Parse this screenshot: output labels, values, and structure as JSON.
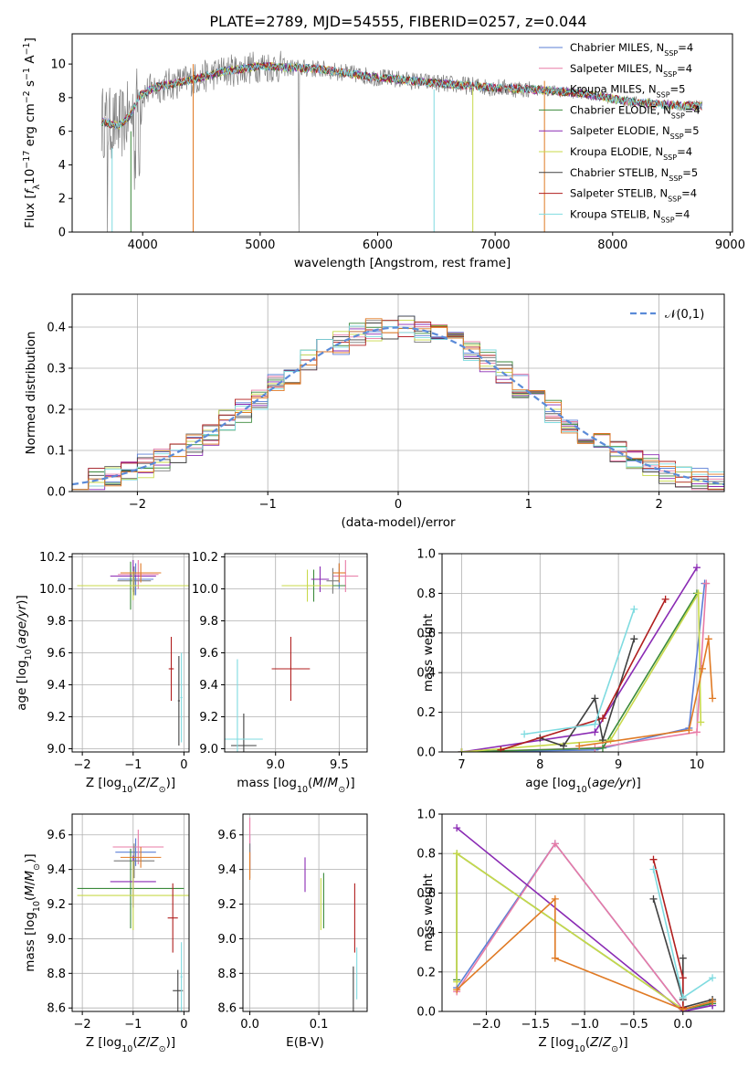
{
  "figure_title": "PLATE=2789, MJD=54555, FIBERID=0257, z=0.044",
  "colors": {
    "Chabrier MILES": "#5b7fd6",
    "Salpeter MILES": "#e87ba6",
    "Kroupa MILES": "#7a7a7a",
    "Chabrier ELODIE": "#3b8a3b",
    "Salpeter ELODIE": "#8a2bb4",
    "Kroupa ELODIE": "#c8d94a",
    "Chabrier STELIB": "#404040",
    "Salpeter STELIB": "#b01e1e",
    "Kroupa STELIB": "#7fdbe0",
    "orange": "#e07a24",
    "data": "#808080",
    "normal": "#5b8bd8"
  },
  "chart_data": [
    {
      "id": "spectrum",
      "type": "line",
      "title": "PLATE=2789, MJD=54555, FIBERID=0257, z=0.044",
      "xlabel": "wavelength [Angstrom, rest frame]",
      "ylabel": "Flux [f_λ10^-17 erg cm^-2 s^-1 A^-1]",
      "xlim": [
        3400,
        9020
      ],
      "ylim": [
        0,
        11.8
      ],
      "xticks": [
        4000,
        5000,
        6000,
        7000,
        8000,
        9000
      ],
      "yticks": [
        0,
        2,
        4,
        6,
        8,
        10
      ],
      "grid": false,
      "legend_position": "upper right",
      "legend": [
        {
          "label": "Chabrier MILES",
          "nssp": "4"
        },
        {
          "label": "Salpeter MILES",
          "nssp": "4"
        },
        {
          "label": "Kroupa MILES",
          "nssp": "5"
        },
        {
          "label": "Chabrier ELODIE",
          "nssp": "4"
        },
        {
          "label": "Salpeter ELODIE",
          "nssp": "5"
        },
        {
          "label": "Kroupa ELODIE",
          "nssp": "4"
        },
        {
          "label": "Chabrier STELIB",
          "nssp": "5"
        },
        {
          "label": "Salpeter STELIB",
          "nssp": "4"
        },
        {
          "label": "Kroupa STELIB",
          "nssp": "4"
        }
      ],
      "continuum_points": [
        [
          3650,
          6.6
        ],
        [
          3800,
          6.3
        ],
        [
          3900,
          7.0
        ],
        [
          3970,
          8.1
        ],
        [
          4100,
          8.6
        ],
        [
          4300,
          8.9
        ],
        [
          4500,
          9.2
        ],
        [
          4700,
          9.6
        ],
        [
          4860,
          9.7
        ],
        [
          5000,
          9.9
        ],
        [
          5200,
          9.8
        ],
        [
          5500,
          9.7
        ],
        [
          5800,
          9.4
        ],
        [
          6000,
          9.2
        ],
        [
          6300,
          9.0
        ],
        [
          6600,
          8.8
        ],
        [
          7000,
          8.6
        ],
        [
          7300,
          8.5
        ],
        [
          7500,
          8.4
        ],
        [
          7800,
          8.2
        ],
        [
          8100,
          7.8
        ],
        [
          8400,
          7.6
        ],
        [
          8700,
          7.5
        ]
      ]
    },
    {
      "id": "residuals",
      "type": "histogram",
      "xlabel": "(data-model)/error",
      "ylabel": "Normed distribution",
      "xlim": [
        -2.5,
        2.5
      ],
      "ylim": [
        0,
        0.48
      ],
      "xticks": [
        -2,
        -1,
        0,
        1,
        2
      ],
      "yticks": [
        0.0,
        0.1,
        0.2,
        0.3,
        0.4
      ],
      "grid": true,
      "legend_position": "upper right",
      "normal_label": "𝒩(0,1)",
      "bins": 40
    },
    {
      "id": "age_vs_Z",
      "type": "errorbar",
      "xlabel": "Z [log10(Z/Z☉)]",
      "ylabel": "age  [log10(age/yr)]",
      "xlim": [
        -2.2,
        0.1
      ],
      "ylim": [
        8.98,
        10.22
      ],
      "xticks": [
        -2,
        -1,
        0
      ],
      "yticks": [
        9.0,
        9.2,
        9.4,
        9.6,
        9.8,
        10.0,
        10.2
      ],
      "grid": true,
      "points": [
        {
          "model": "Chabrier MILES",
          "x": -0.95,
          "y": 10.06,
          "ex": 0.35,
          "ey": 0.1
        },
        {
          "model": "Salpeter MILES",
          "x": -0.9,
          "y": 10.09,
          "ex": 0.4,
          "ey": 0.09
        },
        {
          "model": "Kroupa MILES",
          "x": -0.98,
          "y": 10.05,
          "ex": 0.33,
          "ey": 0.09
        },
        {
          "model": "Chabrier ELODIE",
          "x": -1.05,
          "y": 10.02,
          "ex": 1.05,
          "ey": 0.15
        },
        {
          "model": "Salpeter ELODIE",
          "x": -1.0,
          "y": 10.08,
          "ex": 0.45,
          "ey": 0.1
        },
        {
          "model": "Kroupa ELODIE",
          "x": -1.0,
          "y": 10.02,
          "ex": 1.1,
          "ey": 0.09
        },
        {
          "model": "Chabrier STELIB",
          "x": -0.1,
          "y": 9.3,
          "ex": 0.02,
          "ey": 0.28
        },
        {
          "model": "Salpeter STELIB",
          "x": -0.25,
          "y": 9.5,
          "ex": 0.05,
          "ey": 0.2
        },
        {
          "model": "Kroupa STELIB",
          "x": -0.05,
          "y": 9.32,
          "ex": 0.02,
          "ey": 0.28
        },
        {
          "model": "orange",
          "x": -0.85,
          "y": 10.1,
          "ex": 0.4,
          "ey": 0.06
        }
      ]
    },
    {
      "id": "age_vs_mass",
      "type": "errorbar",
      "xlabel": "mass [log10(M/M☉)]",
      "xlim": [
        8.6,
        9.72
      ],
      "ylim": [
        8.98,
        10.22
      ],
      "xticks": [
        9.0,
        9.5
      ],
      "yticks": [
        9.0,
        9.2,
        9.4,
        9.6,
        9.8,
        10.0,
        10.2
      ],
      "grid": true,
      "points": [
        {
          "model": "Chabrier MILES",
          "x": 9.5,
          "y": 10.08,
          "ex": 0.05,
          "ey": 0.08
        },
        {
          "model": "Salpeter MILES",
          "x": 9.55,
          "y": 10.08,
          "ex": 0.1,
          "ey": 0.1
        },
        {
          "model": "Kroupa MILES",
          "x": 9.45,
          "y": 10.05,
          "ex": 0.05,
          "ey": 0.08
        },
        {
          "model": "Chabrier ELODIE",
          "x": 9.3,
          "y": 10.02,
          "ex": 0.25,
          "ey": 0.1
        },
        {
          "model": "Salpeter ELODIE",
          "x": 9.35,
          "y": 10.06,
          "ex": 0.07,
          "ey": 0.08
        },
        {
          "model": "Kroupa ELODIE",
          "x": 9.25,
          "y": 10.02,
          "ex": 0.2,
          "ey": 0.1
        },
        {
          "model": "Chabrier STELIB",
          "x": 8.75,
          "y": 9.02,
          "ex": 0.1,
          "ey": 0.2
        },
        {
          "model": "Salpeter STELIB",
          "x": 9.12,
          "y": 9.5,
          "ex": 0.15,
          "ey": 0.2
        },
        {
          "model": "Kroupa STELIB",
          "x": 8.7,
          "y": 9.06,
          "ex": 0.2,
          "ey": 0.5
        },
        {
          "model": "orange",
          "x": 9.5,
          "y": 10.1,
          "ex": 0.05,
          "ey": 0.06
        }
      ]
    },
    {
      "id": "weight_vs_age",
      "type": "line",
      "xlabel": "age  [log10(age/yr)]",
      "ylabel": "mass weight",
      "xlim": [
        6.75,
        10.35
      ],
      "ylim": [
        0,
        1.0
      ],
      "xticks": [
        7,
        8,
        9,
        10
      ],
      "yticks": [
        0.0,
        0.2,
        0.4,
        0.6,
        0.8,
        1.0
      ],
      "grid": true,
      "series": [
        {
          "model": "Chabrier MILES",
          "points": [
            [
              7.0,
              0.0
            ],
            [
              8.7,
              0.01
            ],
            [
              9.9,
              0.12
            ],
            [
              10.1,
              0.85
            ]
          ]
        },
        {
          "model": "Salpeter MILES",
          "points": [
            [
              7.0,
              0.0
            ],
            [
              8.7,
              0.02
            ],
            [
              10.0,
              0.1
            ],
            [
              10.12,
              0.85
            ]
          ]
        },
        {
          "model": "Chabrier ELODIE",
          "points": [
            [
              7.0,
              0.0
            ],
            [
              8.8,
              0.02
            ],
            [
              10.0,
              0.8
            ]
          ]
        },
        {
          "model": "Salpeter ELODIE",
          "points": [
            [
              7.0,
              0.0
            ],
            [
              8.7,
              0.1
            ],
            [
              10.0,
              0.93
            ]
          ]
        },
        {
          "model": "Kroupa ELODIE",
          "points": [
            [
              7.0,
              0.0
            ],
            [
              8.9,
              0.06
            ],
            [
              10.02,
              0.8
            ],
            [
              10.05,
              0.15
            ]
          ]
        },
        {
          "model": "Chabrier STELIB",
          "points": [
            [
              8.0,
              0.07
            ],
            [
              8.3,
              0.03
            ],
            [
              8.7,
              0.27
            ],
            [
              8.8,
              0.06
            ],
            [
              9.2,
              0.57
            ]
          ]
        },
        {
          "model": "Salpeter STELIB",
          "points": [
            [
              7.5,
              0.01
            ],
            [
              8.8,
              0.17
            ],
            [
              9.6,
              0.77
            ]
          ]
        },
        {
          "model": "Kroupa STELIB",
          "points": [
            [
              7.8,
              0.09
            ],
            [
              8.7,
              0.14
            ],
            [
              9.2,
              0.72
            ]
          ]
        },
        {
          "model": "orange",
          "points": [
            [
              8.5,
              0.03
            ],
            [
              9.9,
              0.11
            ],
            [
              10.07,
              0.42
            ],
            [
              10.15,
              0.57
            ],
            [
              10.2,
              0.27
            ]
          ]
        }
      ]
    },
    {
      "id": "mass_vs_Z",
      "type": "errorbar",
      "xlabel": "Z [log10(Z/Z☉)]",
      "ylabel": "mass [log10(M/M☉)]",
      "xlim": [
        -2.2,
        0.1
      ],
      "ylim": [
        8.58,
        9.72
      ],
      "xticks": [
        -2,
        -1,
        0
      ],
      "yticks": [
        8.6,
        8.8,
        9.0,
        9.2,
        9.4,
        9.6
      ],
      "grid": true,
      "points": [
        {
          "model": "Chabrier MILES",
          "x": -0.95,
          "y": 9.5,
          "ex": 0.4,
          "ey": 0.08
        },
        {
          "model": "Salpeter MILES",
          "x": -0.9,
          "y": 9.53,
          "ex": 0.5,
          "ey": 0.1
        },
        {
          "model": "Kroupa MILES",
          "x": -0.98,
          "y": 9.45,
          "ex": 0.4,
          "ey": 0.1
        },
        {
          "model": "Chabrier ELODIE",
          "x": -1.05,
          "y": 9.29,
          "ex": 1.05,
          "ey": 0.23
        },
        {
          "model": "Salpeter ELODIE",
          "x": -1.0,
          "y": 9.33,
          "ex": 0.45,
          "ey": 0.15
        },
        {
          "model": "Kroupa ELODIE",
          "x": -1.0,
          "y": 9.25,
          "ex": 1.1,
          "ey": 0.2
        },
        {
          "model": "Chabrier STELIB",
          "x": -0.12,
          "y": 8.7,
          "ex": 0.1,
          "ey": 0.12
        },
        {
          "model": "Salpeter STELIB",
          "x": -0.22,
          "y": 9.12,
          "ex": 0.1,
          "ey": 0.2
        },
        {
          "model": "Kroupa STELIB",
          "x": -0.05,
          "y": 8.78,
          "ex": 0.02,
          "ey": 0.2
        },
        {
          "model": "orange",
          "x": -0.85,
          "y": 9.47,
          "ex": 0.4,
          "ey": 0.06
        }
      ]
    },
    {
      "id": "mass_vs_EBV",
      "type": "errorbar",
      "xlabel": "E(B-V)",
      "xlim": [
        -0.01,
        0.17
      ],
      "ylim": [
        8.58,
        9.72
      ],
      "xticks": [
        0.0,
        0.1
      ],
      "yticks": [
        8.6,
        8.8,
        9.0,
        9.2,
        9.4,
        9.6
      ],
      "grid": true,
      "points": [
        {
          "model": "Chabrier MILES",
          "x": 0.0,
          "y": 9.5,
          "ex": 0,
          "ey": 0.1
        },
        {
          "model": "Salpeter MILES",
          "x": 0.0,
          "y": 9.55,
          "ex": 0,
          "ey": 0.15
        },
        {
          "model": "Kroupa MILES",
          "x": 0.0,
          "y": 9.45,
          "ex": 0,
          "ey": 0.1
        },
        {
          "model": "Chabrier ELODIE",
          "x": 0.107,
          "y": 9.22,
          "ex": 0,
          "ey": 0.16
        },
        {
          "model": "Salpeter ELODIE",
          "x": 0.08,
          "y": 9.37,
          "ex": 0,
          "ey": 0.1
        },
        {
          "model": "Kroupa ELODIE",
          "x": 0.103,
          "y": 9.2,
          "ex": 0,
          "ey": 0.15
        },
        {
          "model": "Chabrier STELIB",
          "x": 0.15,
          "y": 8.68,
          "ex": 0,
          "ey": 0.16
        },
        {
          "model": "Salpeter STELIB",
          "x": 0.152,
          "y": 9.12,
          "ex": 0,
          "ey": 0.2
        },
        {
          "model": "Kroupa STELIB",
          "x": 0.155,
          "y": 8.8,
          "ex": 0,
          "ey": 0.15
        },
        {
          "model": "orange",
          "x": 0.0,
          "y": 9.42,
          "ex": 0,
          "ey": 0.08
        }
      ]
    },
    {
      "id": "weight_vs_Z",
      "type": "line",
      "xlabel": "Z [log10(Z/Z☉)]",
      "ylabel": "mass weight",
      "xlim": [
        -2.45,
        0.42
      ],
      "ylim": [
        0,
        1.0
      ],
      "xticks": [
        -2.0,
        -1.5,
        -1.0,
        -0.5,
        0.0
      ],
      "yticks": [
        0.0,
        0.2,
        0.4,
        0.6,
        0.8,
        1.0
      ],
      "grid": true,
      "series": [
        {
          "model": "Chabrier MILES",
          "points": [
            [
              -2.3,
              0.12
            ],
            [
              -1.3,
              0.85
            ],
            [
              0.0,
              0.01
            ],
            [
              0.3,
              0.03
            ]
          ]
        },
        {
          "model": "Salpeter MILES",
          "points": [
            [
              -2.3,
              0.1
            ],
            [
              -1.3,
              0.85
            ],
            [
              0.0,
              0.01
            ],
            [
              0.3,
              0.04
            ]
          ]
        },
        {
          "model": "Chabrier ELODIE",
          "points": [
            [
              -2.3,
              0.16
            ],
            [
              -2.3,
              0.8
            ],
            [
              0.0,
              0.01
            ],
            [
              0.3,
              0.04
            ]
          ]
        },
        {
          "model": "Salpeter ELODIE",
          "points": [
            [
              -2.3,
              0.93
            ],
            [
              0.0,
              0.0
            ],
            [
              0.3,
              0.03
            ]
          ]
        },
        {
          "model": "Kroupa ELODIE",
          "points": [
            [
              -2.3,
              0.15
            ],
            [
              -2.3,
              0.8
            ],
            [
              0.0,
              0.01
            ],
            [
              0.3,
              0.05
            ]
          ]
        },
        {
          "model": "Chabrier STELIB",
          "points": [
            [
              -0.3,
              0.57
            ],
            [
              0.0,
              0.06
            ],
            [
              0.0,
              0.27
            ],
            [
              0.0,
              0.02
            ],
            [
              0.3,
              0.06
            ]
          ]
        },
        {
          "model": "Salpeter STELIB",
          "points": [
            [
              -0.3,
              0.77
            ],
            [
              0.0,
              0.17
            ],
            [
              0.0,
              0.02
            ]
          ]
        },
        {
          "model": "Kroupa STELIB",
          "points": [
            [
              -0.3,
              0.72
            ],
            [
              0.0,
              0.07
            ],
            [
              0.3,
              0.17
            ]
          ]
        },
        {
          "model": "orange",
          "points": [
            [
              -2.3,
              0.11
            ],
            [
              -1.3,
              0.57
            ],
            [
              -1.3,
              0.27
            ],
            [
              0.0,
              0.01
            ],
            [
              0.3,
              0.05
            ]
          ]
        }
      ]
    }
  ]
}
